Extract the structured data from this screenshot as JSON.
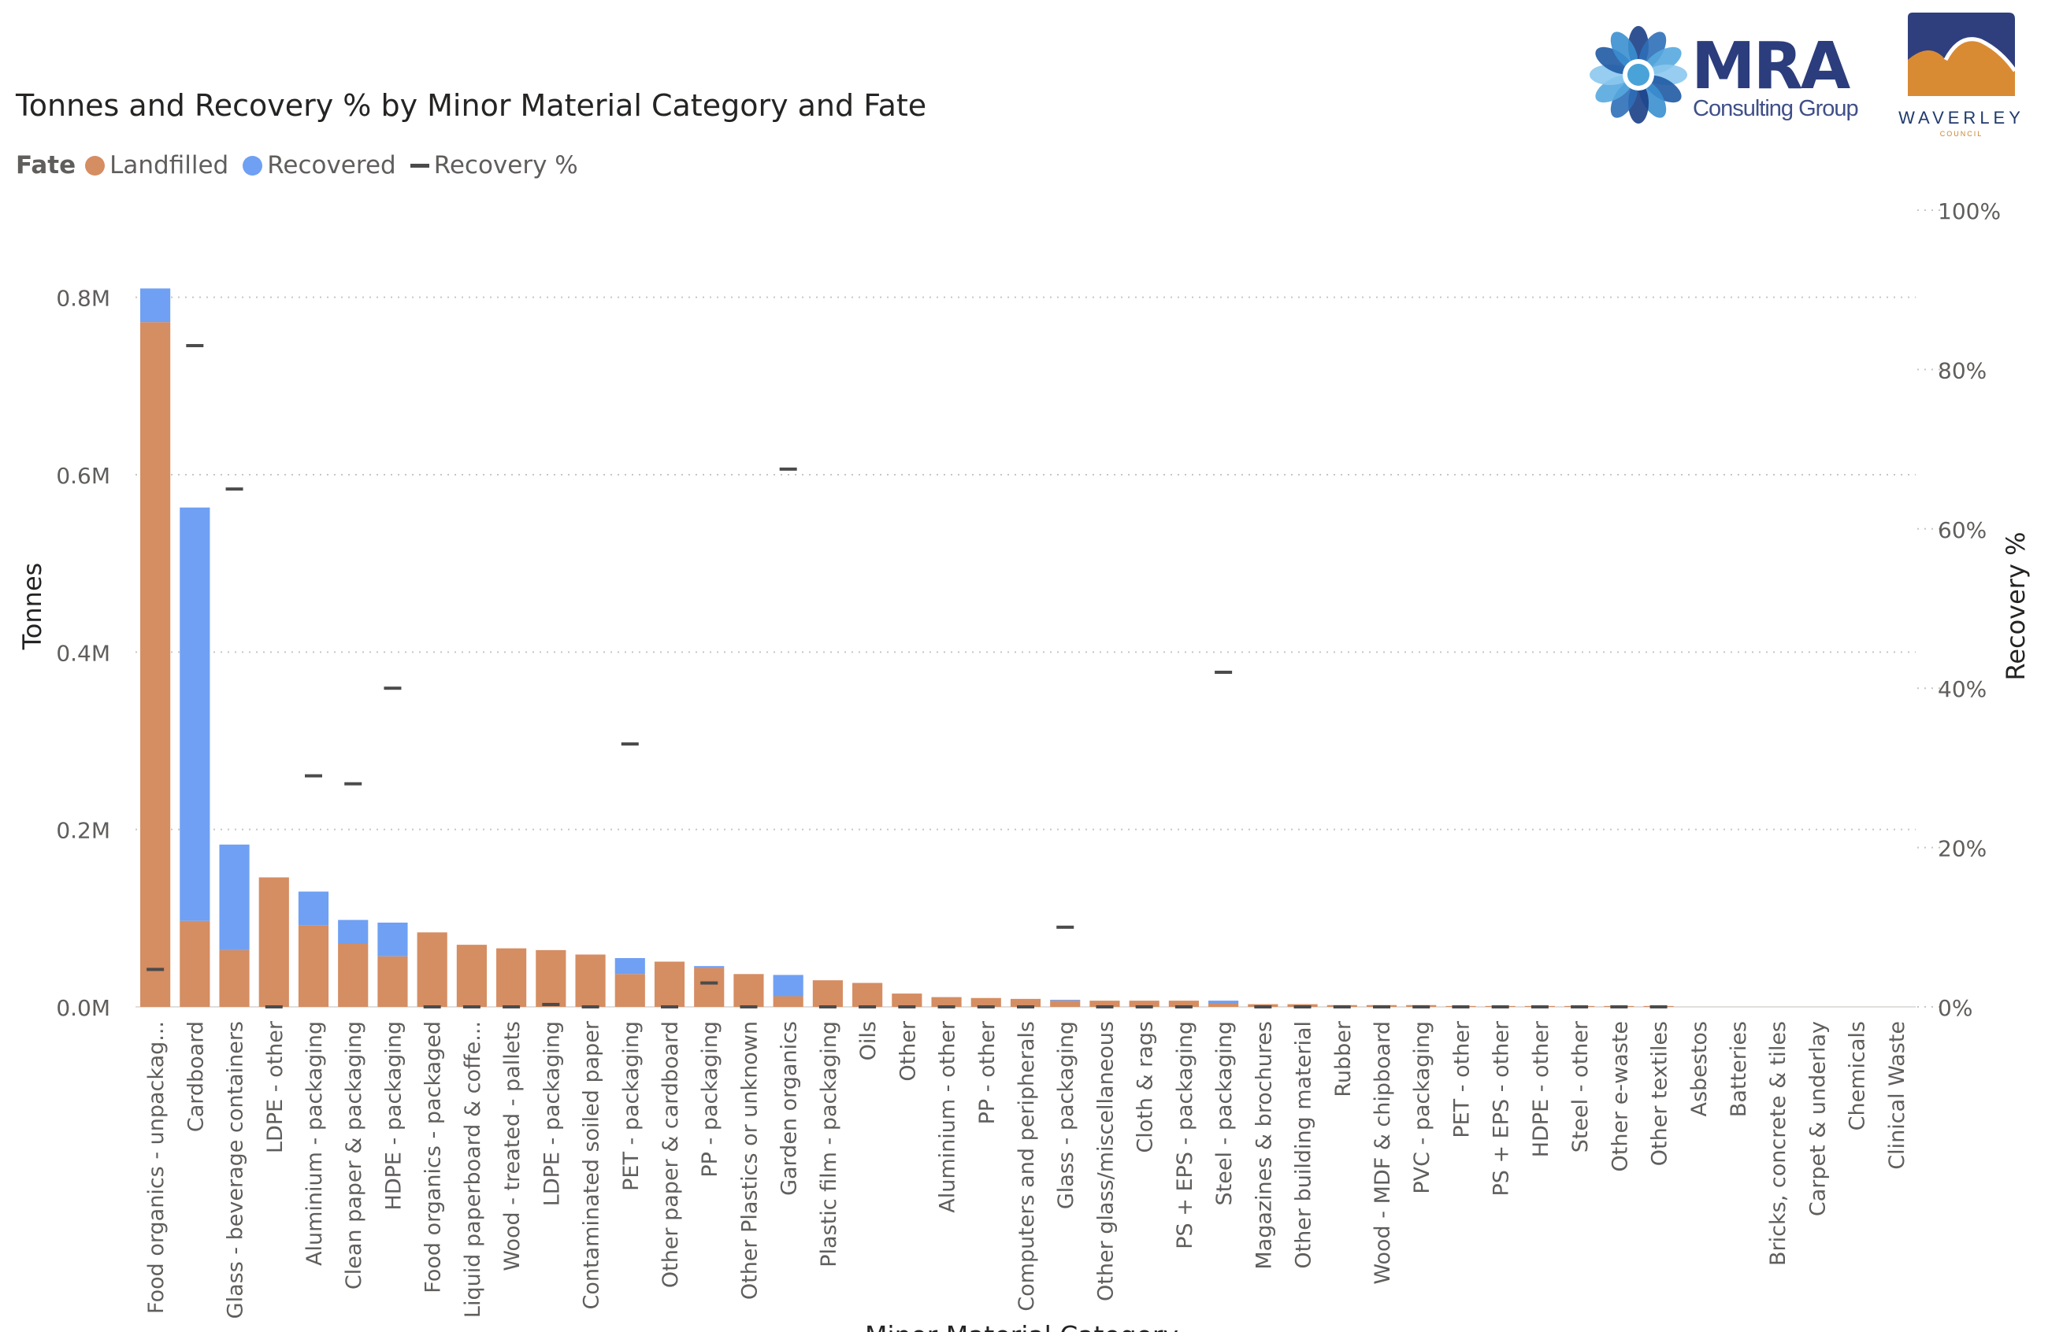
{
  "header": {
    "title": "Tonnes and Recovery % by Minor Material Category and Fate"
  },
  "legend": {
    "title": "Fate",
    "items": [
      {
        "label": "Landfilled",
        "color": "#d58d62"
      },
      {
        "label": "Recovered",
        "color": "#6fa0f3"
      },
      {
        "label": "Recovery %",
        "color": "#4b4b4b"
      }
    ]
  },
  "logos": {
    "mra": {
      "name": "MRA",
      "subtitle": "Consulting Group"
    },
    "waverley": {
      "name": "WAVERLEY",
      "subtitle": "COUNCIL"
    }
  },
  "chart_data": {
    "type": "bar",
    "stacked": true,
    "title": "Tonnes and Recovery % by Minor Material Category and Fate",
    "xlabel": "Minor Material Category",
    "ylabel": "Tonnes",
    "y2label": "Recovery %",
    "ylim": [
      0,
      900000
    ],
    "y2lim": [
      0,
      100
    ],
    "yticks": [
      {
        "value": 0,
        "label": "0.0M"
      },
      {
        "value": 200000,
        "label": "0.2M"
      },
      {
        "value": 400000,
        "label": "0.4M"
      },
      {
        "value": 600000,
        "label": "0.6M"
      },
      {
        "value": 800000,
        "label": "0.8M"
      }
    ],
    "y2ticks": [
      {
        "value": 0,
        "label": "0%"
      },
      {
        "value": 20,
        "label": "20%"
      },
      {
        "value": 40,
        "label": "40%"
      },
      {
        "value": 60,
        "label": "60%"
      },
      {
        "value": 80,
        "label": "80%"
      },
      {
        "value": 100,
        "label": "100%"
      }
    ],
    "categories": [
      "Food organics - unpackag...",
      "Cardboard",
      "Glass - beverage containers",
      "LDPE - other",
      "Aluminium - packaging",
      "Clean paper & packaging",
      "HDPE - packaging",
      "Food organics - packaged",
      "Liquid paperboard & coffe...",
      "Wood - treated - pallets",
      "LDPE - packaging",
      "Contaminated soiled paper",
      "PET - packaging",
      "Other paper & cardboard",
      "PP - packaging",
      "Other Plastics or unknown",
      "Garden organics",
      "Plastic film - packaging",
      "Oils",
      "Other",
      "Aluminium - other",
      "PP - other",
      "Computers and peripherals",
      "Glass - packaging",
      "Other glass/miscellaneous",
      "Cloth & rags",
      "PS + EPS - packaging",
      "Steel - packaging",
      "Magazines & brochures",
      "Other building material",
      "Rubber",
      "Wood - MDF & chipboard",
      "PVC - packaging",
      "PET - other",
      "PS + EPS - other",
      "HDPE - other",
      "Steel - other",
      "Other e-waste",
      "Other textiles",
      "Asbestos",
      "Batteries",
      "Bricks, concrete & tiles",
      "Carpet & underlay",
      "Chemicals",
      "Clinical Waste"
    ],
    "series": [
      {
        "name": "Landfilled",
        "color": "#d58d62",
        "values": [
          772000,
          97000,
          64000,
          146000,
          92000,
          71000,
          57000,
          84000,
          70000,
          66000,
          64000,
          59000,
          37000,
          51000,
          44000,
          37000,
          12000,
          30000,
          27000,
          15000,
          11000,
          10000,
          9000,
          7000,
          7000,
          7000,
          7000,
          4000,
          3000,
          3000,
          2000,
          2000,
          2000,
          1000,
          1000,
          1000,
          1000,
          1000,
          1000,
          0,
          0,
          0,
          0,
          0,
          0
        ]
      },
      {
        "name": "Recovered",
        "color": "#6fa0f3",
        "values": [
          38000,
          466000,
          119000,
          0,
          38000,
          27000,
          38000,
          0,
          0,
          0,
          0,
          0,
          18000,
          0,
          2000,
          0,
          24000,
          0,
          0,
          0,
          0,
          0,
          0,
          1000,
          0,
          0,
          0,
          3000,
          0,
          0,
          0,
          0,
          0,
          0,
          0,
          0,
          0,
          0,
          0,
          0,
          0,
          0,
          0,
          0,
          0
        ]
      },
      {
        "name": "Recovery %",
        "color": "#4b4b4b",
        "type": "line-marker",
        "values": [
          4.7,
          83,
          65,
          0,
          29,
          28,
          40,
          0,
          0,
          0,
          0.3,
          0,
          33,
          0,
          3,
          0,
          67.5,
          0,
          0,
          0,
          0,
          0,
          0,
          10,
          0,
          0,
          0,
          42,
          0,
          0,
          0,
          0,
          0,
          0,
          0,
          0,
          0,
          0,
          0,
          null,
          null,
          null,
          null,
          null,
          null
        ]
      }
    ]
  }
}
